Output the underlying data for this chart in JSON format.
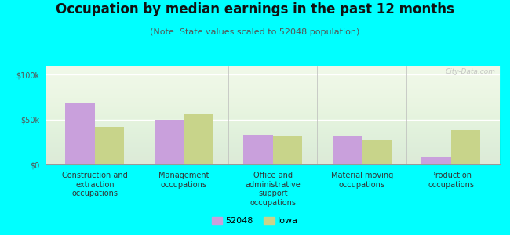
{
  "title": "Occupation by median earnings in the past 12 months",
  "subtitle": "(Note: State values scaled to 52048 population)",
  "categories": [
    "Construction and\nextraction\noccupations",
    "Management\noccupations",
    "Office and\nadministrative\nsupport\noccupations",
    "Material moving\noccupations",
    "Production\noccupations"
  ],
  "values_52048": [
    68000,
    50000,
    33000,
    31000,
    9000
  ],
  "values_iowa": [
    42000,
    57000,
    32000,
    27000,
    38000
  ],
  "color_52048": "#c9a0dc",
  "color_iowa": "#c8d48a",
  "background_color": "#00ffff",
  "ylabel_ticks": [
    0,
    50000,
    100000
  ],
  "ylabel_labels": [
    "$0",
    "$50k",
    "$100k"
  ],
  "ylim": [
    0,
    110000
  ],
  "legend_label_52048": "52048",
  "legend_label_iowa": "Iowa",
  "watermark": "City-Data.com",
  "title_fontsize": 12,
  "subtitle_fontsize": 8,
  "tick_fontsize": 7,
  "legend_fontsize": 8
}
